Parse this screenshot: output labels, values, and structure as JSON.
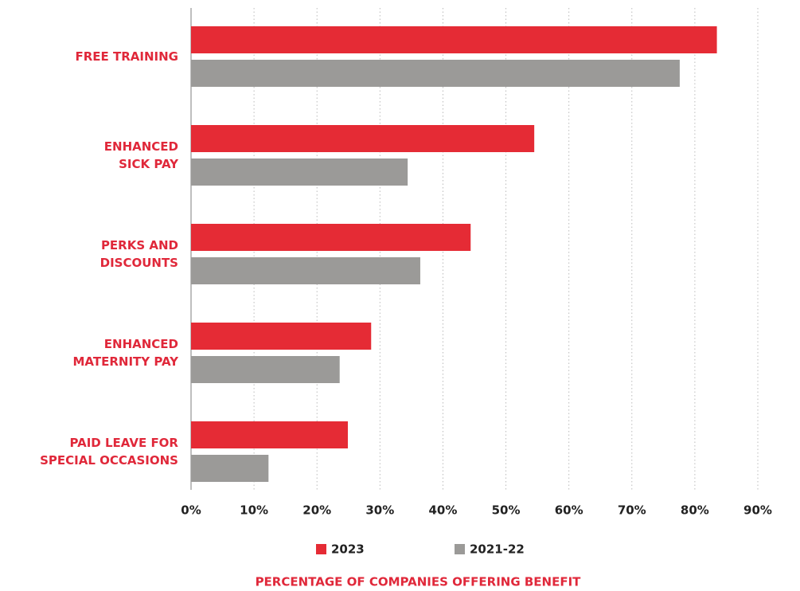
{
  "chart_data": {
    "type": "hbar",
    "categories": [
      "FREE TRAINING",
      "ENHANCED\nSICK PAY",
      "PERKS AND\nDISCOUNTS",
      "ENHANCED\nMATERNITY PAY",
      "PAID LEAVE FOR\nSPECIAL OCCASIONS"
    ],
    "series": [
      {
        "name": "2023",
        "color": "#e52b35",
        "values": [
          83.5,
          54.5,
          44.4,
          28.6,
          24.9
        ]
      },
      {
        "name": "2021-22",
        "color": "#9b9a98",
        "values": [
          77.6,
          34.4,
          36.4,
          23.6,
          12.3
        ]
      }
    ],
    "xlim": [
      0,
      90
    ],
    "xticks": [
      {
        "value": 0,
        "label": "0%"
      },
      {
        "value": 10,
        "label": "10%"
      },
      {
        "value": 20,
        "label": "20%"
      },
      {
        "value": 30,
        "label": "30%"
      },
      {
        "value": 40,
        "label": "40%"
      },
      {
        "value": 50,
        "label": "50%"
      },
      {
        "value": 60,
        "label": "60%"
      },
      {
        "value": 70,
        "label": "70%"
      },
      {
        "value": 80,
        "label": "80%"
      },
      {
        "value": 90,
        "label": "90%"
      }
    ],
    "xlabel": "PERCENTAGE OF COMPANIES OFFERING BENEFIT",
    "grid": true
  }
}
